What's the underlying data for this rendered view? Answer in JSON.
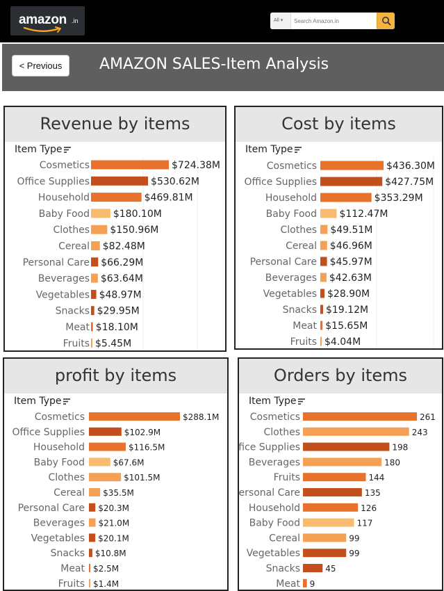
{
  "header": {
    "logo_text": "amazon",
    "logo_suffix": ".in",
    "search": {
      "category": "All",
      "placeholder": "Search Amazon.in"
    }
  },
  "nav": {
    "previous_label": "< Previous"
  },
  "dashboard": {
    "title": "AMAZON SALES-Item Analysis"
  },
  "colors": {
    "dark": "#c24f1c",
    "mid": "#e8722c",
    "light": "#f4a155",
    "pale": "#f8bb70"
  },
  "chart_data": [
    {
      "type": "bar",
      "title": "Revenue by items",
      "field_label": "Item Type",
      "categories": [
        "Cosmetics",
        "Office Supplies",
        "Household",
        "Baby Food",
        "Clothes",
        "Cereal",
        "Personal Care",
        "Beverages",
        "Vegetables",
        "Snacks",
        "Meat",
        "Fruits"
      ],
      "values": [
        724.38,
        530.62,
        469.81,
        180.1,
        150.96,
        82.48,
        66.29,
        63.64,
        48.97,
        29.95,
        18.1,
        5.45
      ],
      "labels": [
        "$724.38M",
        "$530.62M",
        "$469.81M",
        "$180.10M",
        "$150.96M",
        "$82.48M",
        "$66.29M",
        "$63.64M",
        "$48.97M",
        "$29.95M",
        "$18.10M",
        "$5.45M"
      ],
      "colors": [
        "#e8722c",
        "#c24f1c",
        "#e8722c",
        "#f8bb70",
        "#f4a155",
        "#f4a155",
        "#c24f1c",
        "#f4a155",
        "#c24f1c",
        "#c24f1c",
        "#e8722c",
        "#f4a155"
      ]
    },
    {
      "type": "bar",
      "title": "Cost by items",
      "field_label": "Item Type",
      "categories": [
        "Cosmetics",
        "Office Supplies",
        "Household",
        "Baby Food",
        "Clothes",
        "Cereal",
        "Personal Care",
        "Beverages",
        "Vegetables",
        "Snacks",
        "Meat",
        "Fruits"
      ],
      "values": [
        436.3,
        427.75,
        353.29,
        112.47,
        49.51,
        46.96,
        45.97,
        42.63,
        28.9,
        19.12,
        15.65,
        4.04
      ],
      "labels": [
        "$436.30M",
        "$427.75M",
        "$353.29M",
        "$112.47M",
        "$49.51M",
        "$46.96M",
        "$45.97M",
        "$42.63M",
        "$28.90M",
        "$19.12M",
        "$15.65M",
        "$4.04M"
      ],
      "colors": [
        "#e8722c",
        "#c24f1c",
        "#e8722c",
        "#f8bb70",
        "#f4a155",
        "#f4a155",
        "#c24f1c",
        "#f4a155",
        "#c24f1c",
        "#c24f1c",
        "#e8722c",
        "#f4a155"
      ]
    },
    {
      "type": "bar",
      "title": "profit by items",
      "field_label": "Item Type",
      "categories": [
        "Cosmetics",
        "Office Supplies",
        "Household",
        "Baby Food",
        "Clothes",
        "Cereal",
        "Personal Care",
        "Beverages",
        "Vegetables",
        "Snacks",
        "Meat",
        "Fruits"
      ],
      "values": [
        288.1,
        102.9,
        116.5,
        67.6,
        101.5,
        35.5,
        20.3,
        21.0,
        20.1,
        10.8,
        2.5,
        1.4
      ],
      "labels": [
        "$288.1M",
        "$102.9M",
        "$116.5M",
        "$67.6M",
        "$101.5M",
        "$35.5M",
        "$20.3M",
        "$21.0M",
        "$20.1M",
        "$10.8M",
        "$2.5M",
        "$1.4M"
      ],
      "colors": [
        "#e8722c",
        "#c24f1c",
        "#e8722c",
        "#f8bb70",
        "#f4a155",
        "#f4a155",
        "#c24f1c",
        "#f4a155",
        "#c24f1c",
        "#c24f1c",
        "#e8722c",
        "#f4a155"
      ]
    },
    {
      "type": "bar",
      "title": "Orders by items",
      "field_label": "Item Type",
      "categories": [
        "Cosmetics",
        "Clothes",
        "Office Supplies",
        "Beverages",
        "Fruits",
        "Personal Care",
        "Household",
        "Baby Food",
        "Cereal",
        "Vegetables",
        "Snacks",
        "Meat"
      ],
      "values": [
        261,
        243,
        198,
        180,
        144,
        135,
        126,
        117,
        99,
        99,
        45,
        9
      ],
      "labels": [
        "261",
        "243",
        "198",
        "180",
        "144",
        "135",
        "126",
        "117",
        "99",
        "99",
        "45",
        "9"
      ],
      "colors": [
        "#e8722c",
        "#f4a155",
        "#c24f1c",
        "#f4a155",
        "#e8722c",
        "#c24f1c",
        "#e8722c",
        "#f8bb70",
        "#f4a155",
        "#c24f1c",
        "#c24f1c",
        "#e8722c"
      ]
    }
  ]
}
